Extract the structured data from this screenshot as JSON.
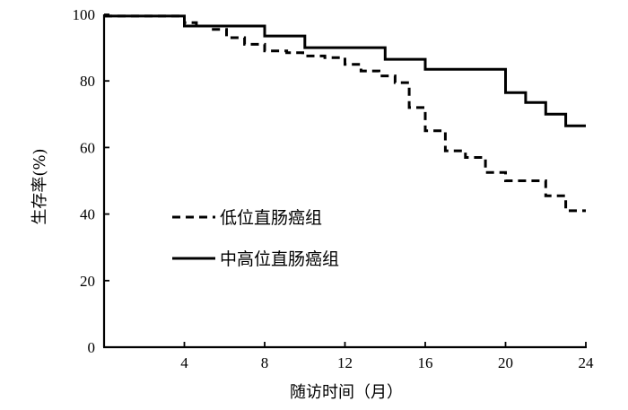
{
  "chart_data": {
    "type": "line",
    "xlabel": "随访时间（月）",
    "ylabel": "生存率(%)",
    "xlim": [
      0,
      24
    ],
    "ylim": [
      0,
      100
    ],
    "x_ticks": [
      "4",
      "8",
      "12",
      "16",
      "20",
      "24"
    ],
    "y_ticks": [
      "0",
      "20",
      "40",
      "60",
      "80",
      "100"
    ],
    "legend_position": "center-left",
    "grid": false,
    "series": [
      {
        "name": "低位直肠癌组",
        "line_style": "dashed",
        "x": [
          0,
          4,
          4.6,
          5.3,
          6.1,
          7,
          8,
          9.1,
          9.9,
          11,
          12,
          12.8,
          13.7,
          14.5,
          15.2,
          16,
          17,
          18,
          19,
          20,
          21,
          22,
          23,
          24
        ],
        "y": [
          99.5,
          97.5,
          96.5,
          95.5,
          93,
          91,
          89,
          88.5,
          87.5,
          87,
          85,
          83,
          81.5,
          79.5,
          72,
          65,
          59,
          57,
          52.5,
          50,
          50,
          45.5,
          41,
          41
        ]
      },
      {
        "name": "中高位直肠癌组",
        "line_style": "solid",
        "x": [
          0,
          4,
          8,
          10,
          14,
          16,
          20,
          21,
          22,
          23,
          24
        ],
        "y": [
          99.5,
          96.5,
          93.5,
          90,
          86.5,
          83.5,
          76.5,
          73.5,
          70,
          66.5,
          66.5
        ]
      }
    ]
  }
}
